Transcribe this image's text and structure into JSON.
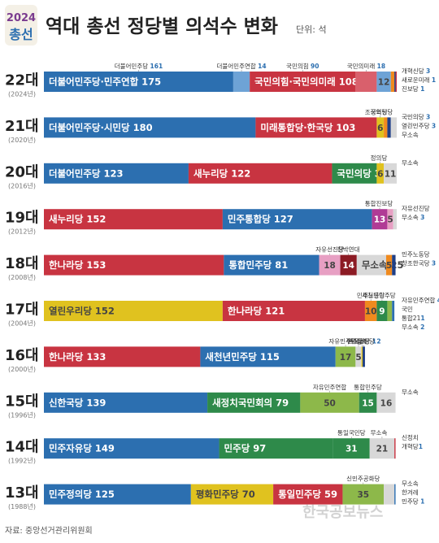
{
  "header": {
    "logo_top": "2024",
    "logo_bottom": "총선",
    "title": "역대 총선 정당별 의석수 변화",
    "unit": "단위: 석"
  },
  "source": "자료: 중앙선거관리위원회",
  "watermark": "한국공보뉴스",
  "colors": {
    "blue": "#2c6fb0",
    "red": "#c83441",
    "yellow": "#e0c21f",
    "green": "#2e8a4a",
    "lightgreen": "#8db84a",
    "pink": "#e79fc3",
    "maroon": "#8c1b24",
    "orange": "#f08a1e",
    "gray": "#c9c9c9",
    "navy": "#1f3f86",
    "lightblue": "#6ea3d6"
  },
  "chart_data": {
    "type": "bar",
    "orientation": "horizontal",
    "stacked": true,
    "unit": "석",
    "categories": [
      "22대",
      "21대",
      "20대",
      "19대",
      "18대",
      "17대",
      "16대",
      "15대",
      "14대",
      "13대"
    ],
    "years": [
      "(2024년)",
      "(2020년)",
      "(2016년)",
      "(2012년)",
      "(2008년)",
      "(2004년)",
      "(2000년)",
      "(1996년)",
      "(1992년)",
      "(1988년)"
    ],
    "rows": [
      {
        "segments": [
          {
            "label": "더불어민주당·민주연합 175",
            "value": 161,
            "color": "#2c6fb0"
          },
          {
            "label": "",
            "value": 14,
            "color": "#6ea3d6"
          },
          {
            "label": "국민의힘·국민의미래 108",
            "value": 90,
            "color": "#c83441"
          },
          {
            "label": "",
            "value": 18,
            "color": "#d9606c"
          },
          {
            "label": "12",
            "value": 12,
            "color": "#6ea3d6"
          },
          {
            "label": "",
            "value": 3,
            "color": "#f08a1e"
          },
          {
            "label": "",
            "value": 1,
            "color": "#1f3f86"
          },
          {
            "label": "",
            "value": 1,
            "color": "#c83441"
          }
        ],
        "callouts": [
          {
            "text": "더불어민주당 ",
            "num": "161",
            "anchor": 0
          },
          {
            "text": "더불어민주연합 ",
            "num": "14",
            "anchor": 1
          },
          {
            "text": "국민의힘 ",
            "num": "90",
            "anchor": 2
          },
          {
            "text": "국민의미래 ",
            "num": "18",
            "anchor": 3
          },
          {
            "text": "개혁신당 ",
            "num": "3",
            "anchor": 5
          },
          {
            "text": "새로운미래 ",
            "num": "1",
            "anchor": 6
          },
          {
            "text": "진보당 ",
            "num": "1",
            "anchor": 7
          }
        ]
      },
      {
        "segments": [
          {
            "label": "더불어민주당·시민당 180",
            "value": 180,
            "color": "#2c6fb0"
          },
          {
            "label": "미래통합당·한국당 103",
            "value": 103,
            "color": "#c83441"
          },
          {
            "label": "6",
            "value": 6,
            "color": "#e0c21f"
          },
          {
            "label": "",
            "value": 3,
            "color": "#f08a1e"
          },
          {
            "label": "",
            "value": 3,
            "color": "#1f3f86"
          },
          {
            "label": "",
            "value": 5,
            "color": "#d8d8d8"
          }
        ],
        "callouts": [
          {
            "text": "조국혁신당 ",
            "num": "",
            "anchor": 2
          },
          {
            "text": "정의당",
            "num": "",
            "anchor": 2
          },
          {
            "text": "국민의당 ",
            "num": "3",
            "anchor": 3
          },
          {
            "text": "열린민주당 ",
            "num": "3",
            "anchor": 4
          },
          {
            "text": "무소속",
            "num": "",
            "anchor": 5
          }
        ]
      },
      {
        "segments": [
          {
            "label": "더불어민주당 123",
            "value": 123,
            "color": "#2c6fb0"
          },
          {
            "label": "새누리당 122",
            "value": 122,
            "color": "#c83441"
          },
          {
            "label": "국민의당 38",
            "value": 38,
            "color": "#2e8a4a"
          },
          {
            "label": "6",
            "value": 6,
            "color": "#e0c21f"
          },
          {
            "label": "11",
            "value": 11,
            "color": "#d8d8d8"
          }
        ],
        "callouts": [
          {
            "text": "정의당",
            "num": "",
            "anchor": 3
          },
          {
            "text": "무소속",
            "num": "",
            "anchor": 4
          }
        ]
      },
      {
        "segments": [
          {
            "label": "새누리당 152",
            "value": 152,
            "color": "#c83441"
          },
          {
            "label": "민주통합당 127",
            "value": 127,
            "color": "#2c6fb0"
          },
          {
            "label": "13",
            "value": 13,
            "color": "#b03b95"
          },
          {
            "label": "5",
            "value": 5,
            "color": "#e79fc3"
          },
          {
            "label": "",
            "value": 3,
            "color": "#d8d8d8"
          }
        ],
        "callouts": [
          {
            "text": "통합진보당",
            "num": "",
            "anchor": 2
          },
          {
            "text": "자유선진당",
            "num": "",
            "anchor": 3
          },
          {
            "text": "무소속 ",
            "num": "3",
            "anchor": 4
          }
        ]
      },
      {
        "segments": [
          {
            "label": "한나라당 153",
            "value": 153,
            "color": "#c83441"
          },
          {
            "label": "통합민주당 81",
            "value": 81,
            "color": "#2c6fb0"
          },
          {
            "label": "18",
            "value": 18,
            "color": "#e79fc3"
          },
          {
            "label": "14",
            "value": 14,
            "color": "#8c1b24"
          },
          {
            "label": "무소속 25",
            "value": 25,
            "color": "#d8d8d8"
          },
          {
            "label": "5",
            "value": 5,
            "color": "#f08a1e"
          },
          {
            "label": "",
            "value": 3,
            "color": "#1f3f86"
          }
        ],
        "callouts": [
          {
            "text": "자유선진당",
            "num": "",
            "anchor": 2
          },
          {
            "text": "친박연대",
            "num": "",
            "anchor": 3
          },
          {
            "text": "민주노동당",
            "num": "",
            "anchor": 5
          },
          {
            "text": "창조한국당 ",
            "num": "3",
            "anchor": 6
          }
        ]
      },
      {
        "segments": [
          {
            "label": "열린우리당 152",
            "value": 152,
            "color": "#e0c21f"
          },
          {
            "label": "한나라당 121",
            "value": 121,
            "color": "#c83441"
          },
          {
            "label": "10",
            "value": 10,
            "color": "#f08a1e"
          },
          {
            "label": "9",
            "value": 9,
            "color": "#2e8a4a"
          },
          {
            "label": "",
            "value": 4,
            "color": "#8db84a"
          },
          {
            "label": "",
            "value": 2,
            "color": "#2c6fb0"
          }
        ],
        "callouts": [
          {
            "text": "민주노동당",
            "num": "",
            "anchor": 2
          },
          {
            "text": "자유민주연합 ",
            "num": "4",
            "anchor": 4
          },
          {
            "text": "국민",
            "num": "",
            "anchor": 5
          },
          {
            "text": "통합21",
            "num": "1",
            "anchor": 5
          },
          {
            "text": "무소속 ",
            "num": "2",
            "anchor": 5
          },
          {
            "text": "새천년민주당",
            "num": "",
            "anchor": 3
          }
        ]
      },
      {
        "segments": [
          {
            "label": "한나라당 133",
            "value": 133,
            "color": "#c83441"
          },
          {
            "label": "새천년민주당 115",
            "value": 115,
            "color": "#2c6fb0"
          },
          {
            "label": "17",
            "value": 17,
            "color": "#8db84a"
          },
          {
            "label": "5",
            "value": 5,
            "color": "#d8d8d8"
          },
          {
            "label": "",
            "value": 1,
            "color": "#e0c21f"
          },
          {
            "label": "",
            "value": 2,
            "color": "#1f3f86"
          }
        ],
        "callouts": [
          {
            "text": "자유민주연합",
            "num": "",
            "anchor": 2
          },
          {
            "text": "무소속",
            "num": "",
            "anchor": 3
          },
          {
            "text": "한국신당 ",
            "num": "1",
            "anchor": 4
          },
          {
            "text": "민주국민당 ",
            "num": "2",
            "anchor": 5
          }
        ]
      },
      {
        "segments": [
          {
            "label": "신한국당 139",
            "value": 139,
            "color": "#2c6fb0"
          },
          {
            "label": "새정치국민회의 79",
            "value": 79,
            "color": "#2e8a4a"
          },
          {
            "label": "50",
            "value": 50,
            "color": "#8db84a"
          },
          {
            "label": "15",
            "value": 15,
            "color": "#2e8a4a"
          },
          {
            "label": "16",
            "value": 16,
            "color": "#d8d8d8"
          }
        ],
        "callouts": [
          {
            "text": "자유민주연합",
            "num": "",
            "anchor": 2
          },
          {
            "text": "통합민주당",
            "num": "",
            "anchor": 3
          },
          {
            "text": "무소속",
            "num": "",
            "anchor": 4
          }
        ]
      },
      {
        "segments": [
          {
            "label": "민주자유당 149",
            "value": 149,
            "color": "#2c6fb0"
          },
          {
            "label": "민주당 97",
            "value": 97,
            "color": "#2e8a4a"
          },
          {
            "label": "31",
            "value": 31,
            "color": "#2e8a4a"
          },
          {
            "label": "21",
            "value": 21,
            "color": "#d8d8d8"
          },
          {
            "label": "",
            "value": 1,
            "color": "#c83441"
          }
        ],
        "callouts": [
          {
            "text": "통일국민당",
            "num": "",
            "anchor": 2
          },
          {
            "text": "무소속",
            "num": "",
            "anchor": 3
          },
          {
            "text": "신정치",
            "num": "",
            "anchor": 4
          },
          {
            "text": "개혁당",
            "num": "1",
            "anchor": 4
          }
        ]
      },
      {
        "segments": [
          {
            "label": "민주정의당 125",
            "value": 125,
            "color": "#2c6fb0"
          },
          {
            "label": "평화민주당 70",
            "value": 70,
            "color": "#e0c21f"
          },
          {
            "label": "통일민주당 59",
            "value": 59,
            "color": "#c83441"
          },
          {
            "label": "35",
            "value": 35,
            "color": "#8db84a"
          },
          {
            "label": "",
            "value": 9,
            "color": "#d8d8d8"
          },
          {
            "label": "",
            "value": 1,
            "color": "#2c6fb0"
          }
        ],
        "callouts": [
          {
            "text": "신민주공화당",
            "num": "",
            "anchor": 3
          },
          {
            "text": "무소속",
            "num": "",
            "anchor": 4
          },
          {
            "text": "한겨레",
            "num": "",
            "anchor": 5
          },
          {
            "text": "민주당 ",
            "num": "1",
            "anchor": 5
          }
        ]
      }
    ]
  }
}
